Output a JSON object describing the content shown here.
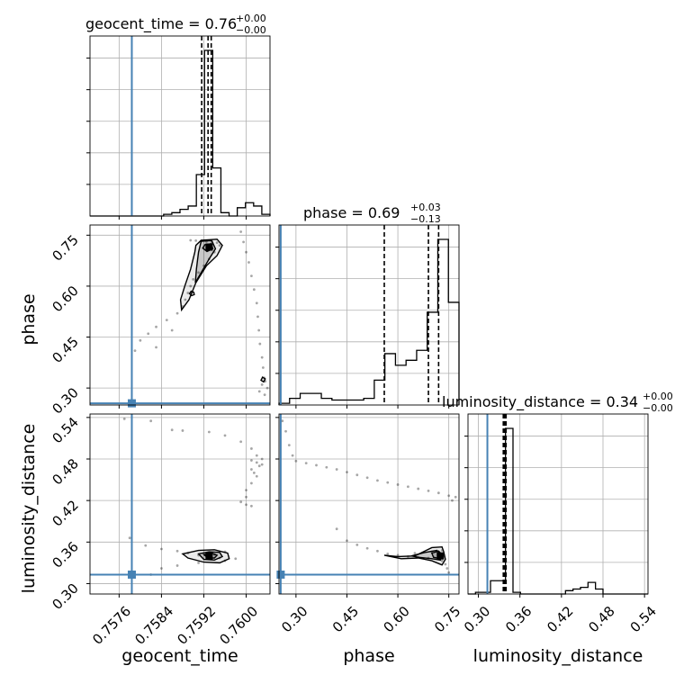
{
  "colors": {
    "truth": "#4682b4",
    "hist": "#000000",
    "grid": "#b0b0b0"
  },
  "chart_data": {
    "type": "corner",
    "parameters": [
      {
        "name": "geocent_time",
        "range": [
          0.75705,
          0.76045
        ],
        "truth": 0.75784,
        "ticks": [
          0.7576,
          0.7584,
          0.7592,
          0.76
        ],
        "tick_labels": [
          "0.7576",
          "0.7584",
          "0.7592",
          "0.7600"
        ],
        "quantiles": [
          0.75916,
          0.75928,
          0.75934
        ],
        "title_value": "0.76",
        "title_plus": "+0.00",
        "title_minus": "−0.00",
        "hist": [
          0,
          0,
          0,
          0,
          0,
          0,
          0,
          0,
          0,
          0.01,
          0.02,
          0.04,
          0.06,
          0.25,
          1.0,
          0.29,
          0.02,
          0,
          0.05,
          0.08,
          0.06,
          0.01
        ]
      },
      {
        "name": "phase",
        "range": [
          0.25,
          0.78
        ],
        "truth": 0.255,
        "ticks": [
          0.3,
          0.45,
          0.6,
          0.75
        ],
        "tick_labels": [
          "0.30",
          "0.45",
          "0.60",
          "0.75"
        ],
        "quantiles": [
          0.56,
          0.69,
          0.72
        ],
        "title_value": "0.69",
        "title_plus": "+0.03",
        "title_minus": "−0.13",
        "hist": [
          0.01,
          0.04,
          0.07,
          0.07,
          0.04,
          0.03,
          0.03,
          0.03,
          0.04,
          0.15,
          0.31,
          0.24,
          0.27,
          0.33,
          0.56,
          1.0,
          0.62
        ]
      },
      {
        "name": "luminosity_distance",
        "range": [
          0.285,
          0.545
        ],
        "truth": 0.313,
        "ticks": [
          0.3,
          0.36,
          0.42,
          0.48,
          0.54
        ],
        "tick_labels": [
          "0.30",
          "0.36",
          "0.42",
          "0.48",
          "0.54"
        ],
        "quantiles": [
          0.336,
          0.338,
          0.34
        ],
        "title_value": "0.34",
        "title_plus": "+0.00",
        "title_minus": "−0.00",
        "hist": [
          0,
          0.01,
          0.01,
          0.08,
          0.08,
          1.0,
          0.01,
          0,
          0,
          0,
          0,
          0,
          0,
          0.02,
          0.03,
          0.04,
          0.07,
          0.03,
          0,
          0,
          0,
          0,
          0,
          0
        ]
      }
    ],
    "scatter": {
      "phase_vs_geocent_time": [
        [
          0.75895,
          0.735
        ],
        [
          0.75905,
          0.734
        ],
        [
          0.75915,
          0.733
        ],
        [
          0.75925,
          0.731
        ],
        [
          0.75935,
          0.73
        ],
        [
          0.75945,
          0.728
        ],
        [
          0.7595,
          0.72
        ],
        [
          0.7594,
          0.7
        ],
        [
          0.7593,
          0.68
        ],
        [
          0.7592,
          0.66
        ],
        [
          0.7591,
          0.64
        ],
        [
          0.759,
          0.62
        ],
        [
          0.75895,
          0.6
        ],
        [
          0.7589,
          0.58
        ],
        [
          0.75885,
          0.56
        ],
        [
          0.7588,
          0.54
        ],
        [
          0.7587,
          0.52
        ],
        [
          0.7585,
          0.5
        ],
        [
          0.7583,
          0.48
        ],
        [
          0.75815,
          0.46
        ],
        [
          0.758,
          0.44
        ],
        [
          0.7579,
          0.41
        ],
        [
          0.7583,
          0.42
        ],
        [
          0.7586,
          0.47
        ],
        [
          0.7599,
          0.76
        ],
        [
          0.75995,
          0.73
        ],
        [
          0.76,
          0.7
        ],
        [
          0.76005,
          0.67
        ],
        [
          0.7601,
          0.63
        ],
        [
          0.76015,
          0.59
        ],
        [
          0.7602,
          0.55
        ],
        [
          0.76022,
          0.51
        ],
        [
          0.76024,
          0.47
        ],
        [
          0.76026,
          0.43
        ],
        [
          0.7603,
          0.39
        ],
        [
          0.76032,
          0.36
        ],
        [
          0.76034,
          0.33
        ],
        [
          0.76036,
          0.32
        ],
        [
          0.7603,
          0.31
        ],
        [
          0.7604,
          0.3
        ],
        [
          0.76025,
          0.29
        ],
        [
          0.76035,
          0.28
        ]
      ],
      "luminosity_distance_vs_geocent_time": [
        [
          0.7578,
          0.366
        ],
        [
          0.7581,
          0.355
        ],
        [
          0.7584,
          0.35
        ],
        [
          0.7587,
          0.347
        ],
        [
          0.7589,
          0.344
        ],
        [
          0.7591,
          0.341
        ],
        [
          0.7593,
          0.338
        ],
        [
          0.7595,
          0.337
        ],
        [
          0.7598,
          0.336
        ],
        [
          0.7596,
          0.333
        ],
        [
          0.7591,
          0.33
        ],
        [
          0.7587,
          0.326
        ],
        [
          0.7584,
          0.322
        ],
        [
          0.7582,
          0.313
        ],
        [
          0.7594,
          0.342
        ],
        [
          0.7596,
          0.346
        ],
        [
          0.7601,
          0.478
        ],
        [
          0.7602,
          0.475
        ],
        [
          0.76025,
          0.47
        ],
        [
          0.7603,
          0.48
        ],
        [
          0.7601,
          0.465
        ],
        [
          0.76015,
          0.46
        ],
        [
          0.7602,
          0.455
        ],
        [
          0.7601,
          0.445
        ],
        [
          0.76,
          0.435
        ],
        [
          0.76,
          0.425
        ],
        [
          0.7599,
          0.418
        ],
        [
          0.76,
          0.414
        ],
        [
          0.7601,
          0.412
        ],
        [
          0.7602,
          0.485
        ],
        [
          0.7603,
          0.472
        ],
        [
          0.7586,
          0.522
        ],
        [
          0.7588,
          0.521
        ],
        [
          0.7593,
          0.519
        ],
        [
          0.7596,
          0.514
        ],
        [
          0.7599,
          0.505
        ],
        [
          0.7601,
          0.495
        ],
        [
          0.7577,
          0.538
        ],
        [
          0.7582,
          0.535
        ]
      ],
      "luminosity_distance_vs_phase": [
        [
          0.26,
          0.535
        ],
        [
          0.27,
          0.52
        ],
        [
          0.28,
          0.5
        ],
        [
          0.29,
          0.485
        ],
        [
          0.3,
          0.477
        ],
        [
          0.33,
          0.474
        ],
        [
          0.36,
          0.471
        ],
        [
          0.39,
          0.468
        ],
        [
          0.42,
          0.465
        ],
        [
          0.45,
          0.461
        ],
        [
          0.48,
          0.457
        ],
        [
          0.51,
          0.453
        ],
        [
          0.54,
          0.449
        ],
        [
          0.57,
          0.446
        ],
        [
          0.6,
          0.443
        ],
        [
          0.63,
          0.44
        ],
        [
          0.66,
          0.437
        ],
        [
          0.69,
          0.434
        ],
        [
          0.72,
          0.431
        ],
        [
          0.75,
          0.427
        ],
        [
          0.77,
          0.425
        ],
        [
          0.76,
          0.42
        ],
        [
          0.42,
          0.379
        ],
        [
          0.45,
          0.362
        ],
        [
          0.48,
          0.356
        ],
        [
          0.51,
          0.351
        ],
        [
          0.54,
          0.347
        ],
        [
          0.57,
          0.343
        ],
        [
          0.6,
          0.341
        ],
        [
          0.63,
          0.339
        ],
        [
          0.66,
          0.338
        ],
        [
          0.69,
          0.337
        ],
        [
          0.72,
          0.336
        ],
        [
          0.73,
          0.333
        ],
        [
          0.74,
          0.328
        ],
        [
          0.745,
          0.322
        ],
        [
          0.75,
          0.316
        ],
        [
          0.65,
          0.344
        ],
        [
          0.7,
          0.346
        ],
        [
          0.73,
          0.348
        ]
      ]
    },
    "contours": {
      "phase_vs_geocent_time": [
        [
          [
            0.75915,
            0.735
          ],
          [
            0.75945,
            0.738
          ],
          [
            0.75955,
            0.72
          ],
          [
            0.75945,
            0.69
          ],
          [
            0.75925,
            0.66
          ],
          [
            0.75905,
            0.61
          ],
          [
            0.75892,
            0.56
          ],
          [
            0.75878,
            0.53
          ],
          [
            0.75876,
            0.56
          ],
          [
            0.75884,
            0.6
          ],
          [
            0.75895,
            0.65
          ],
          [
            0.75903,
            0.7
          ],
          [
            0.75905,
            0.72
          ],
          [
            0.75915,
            0.735
          ]
        ],
        [
          [
            0.75915,
            0.732
          ],
          [
            0.75935,
            0.734
          ],
          [
            0.75942,
            0.71
          ],
          [
            0.7593,
            0.68
          ],
          [
            0.75915,
            0.64
          ],
          [
            0.75904,
            0.61
          ],
          [
            0.75906,
            0.65
          ],
          [
            0.7591,
            0.7
          ],
          [
            0.75915,
            0.732
          ]
        ],
        [
          [
            0.75922,
            0.722
          ],
          [
            0.75934,
            0.725
          ],
          [
            0.75937,
            0.71
          ],
          [
            0.75926,
            0.702
          ],
          [
            0.75918,
            0.712
          ],
          [
            0.75922,
            0.722
          ]
        ],
        [
          [
            0.75896,
            0.585
          ],
          [
            0.75901,
            0.582
          ],
          [
            0.75902,
            0.575
          ],
          [
            0.75897,
            0.572
          ],
          [
            0.75893,
            0.578
          ],
          [
            0.75896,
            0.585
          ]
        ],
        [
          [
            0.76031,
            0.332
          ],
          [
            0.76036,
            0.327
          ],
          [
            0.76033,
            0.318
          ],
          [
            0.76028,
            0.323
          ],
          [
            0.76031,
            0.332
          ]
        ]
      ],
      "luminosity_distance_vs_geocent_time": [
        [
          [
            0.7588,
            0.343
          ],
          [
            0.7591,
            0.348
          ],
          [
            0.7594,
            0.349
          ],
          [
            0.75965,
            0.344
          ],
          [
            0.75968,
            0.336
          ],
          [
            0.7595,
            0.33
          ],
          [
            0.7592,
            0.331
          ],
          [
            0.7589,
            0.337
          ],
          [
            0.7588,
            0.343
          ]
        ],
        [
          [
            0.7591,
            0.343
          ],
          [
            0.7593,
            0.346
          ],
          [
            0.7595,
            0.345
          ],
          [
            0.75955,
            0.339
          ],
          [
            0.7594,
            0.334
          ],
          [
            0.7592,
            0.335
          ],
          [
            0.7591,
            0.343
          ]
        ],
        [
          [
            0.7592,
            0.342
          ],
          [
            0.75935,
            0.344
          ],
          [
            0.75945,
            0.341
          ],
          [
            0.7594,
            0.337
          ],
          [
            0.75928,
            0.337
          ],
          [
            0.7592,
            0.342
          ]
        ]
      ],
      "luminosity_distance_vs_phase": [
        [
          [
            0.56,
            0.341
          ],
          [
            0.6,
            0.339
          ],
          [
            0.65,
            0.34
          ],
          [
            0.7,
            0.352
          ],
          [
            0.73,
            0.353
          ],
          [
            0.735,
            0.346
          ],
          [
            0.74,
            0.335
          ],
          [
            0.73,
            0.327
          ],
          [
            0.7,
            0.333
          ],
          [
            0.66,
            0.337
          ],
          [
            0.61,
            0.336
          ],
          [
            0.56,
            0.341
          ]
        ],
        [
          [
            0.64,
            0.34
          ],
          [
            0.68,
            0.345
          ],
          [
            0.715,
            0.348
          ],
          [
            0.725,
            0.343
          ],
          [
            0.725,
            0.334
          ],
          [
            0.7,
            0.336
          ],
          [
            0.66,
            0.338
          ],
          [
            0.64,
            0.34
          ]
        ],
        [
          [
            0.7,
            0.344
          ],
          [
            0.72,
            0.347
          ],
          [
            0.73,
            0.342
          ],
          [
            0.725,
            0.336
          ],
          [
            0.705,
            0.338
          ],
          [
            0.7,
            0.344
          ]
        ]
      ]
    },
    "density_peaks": {
      "phase_vs_geocent_time": [
        0.7593,
        0.715
      ],
      "luminosity_distance_vs_geocent_time": [
        0.7593,
        0.34
      ],
      "luminosity_distance_vs_phase": [
        0.725,
        0.34
      ]
    }
  }
}
